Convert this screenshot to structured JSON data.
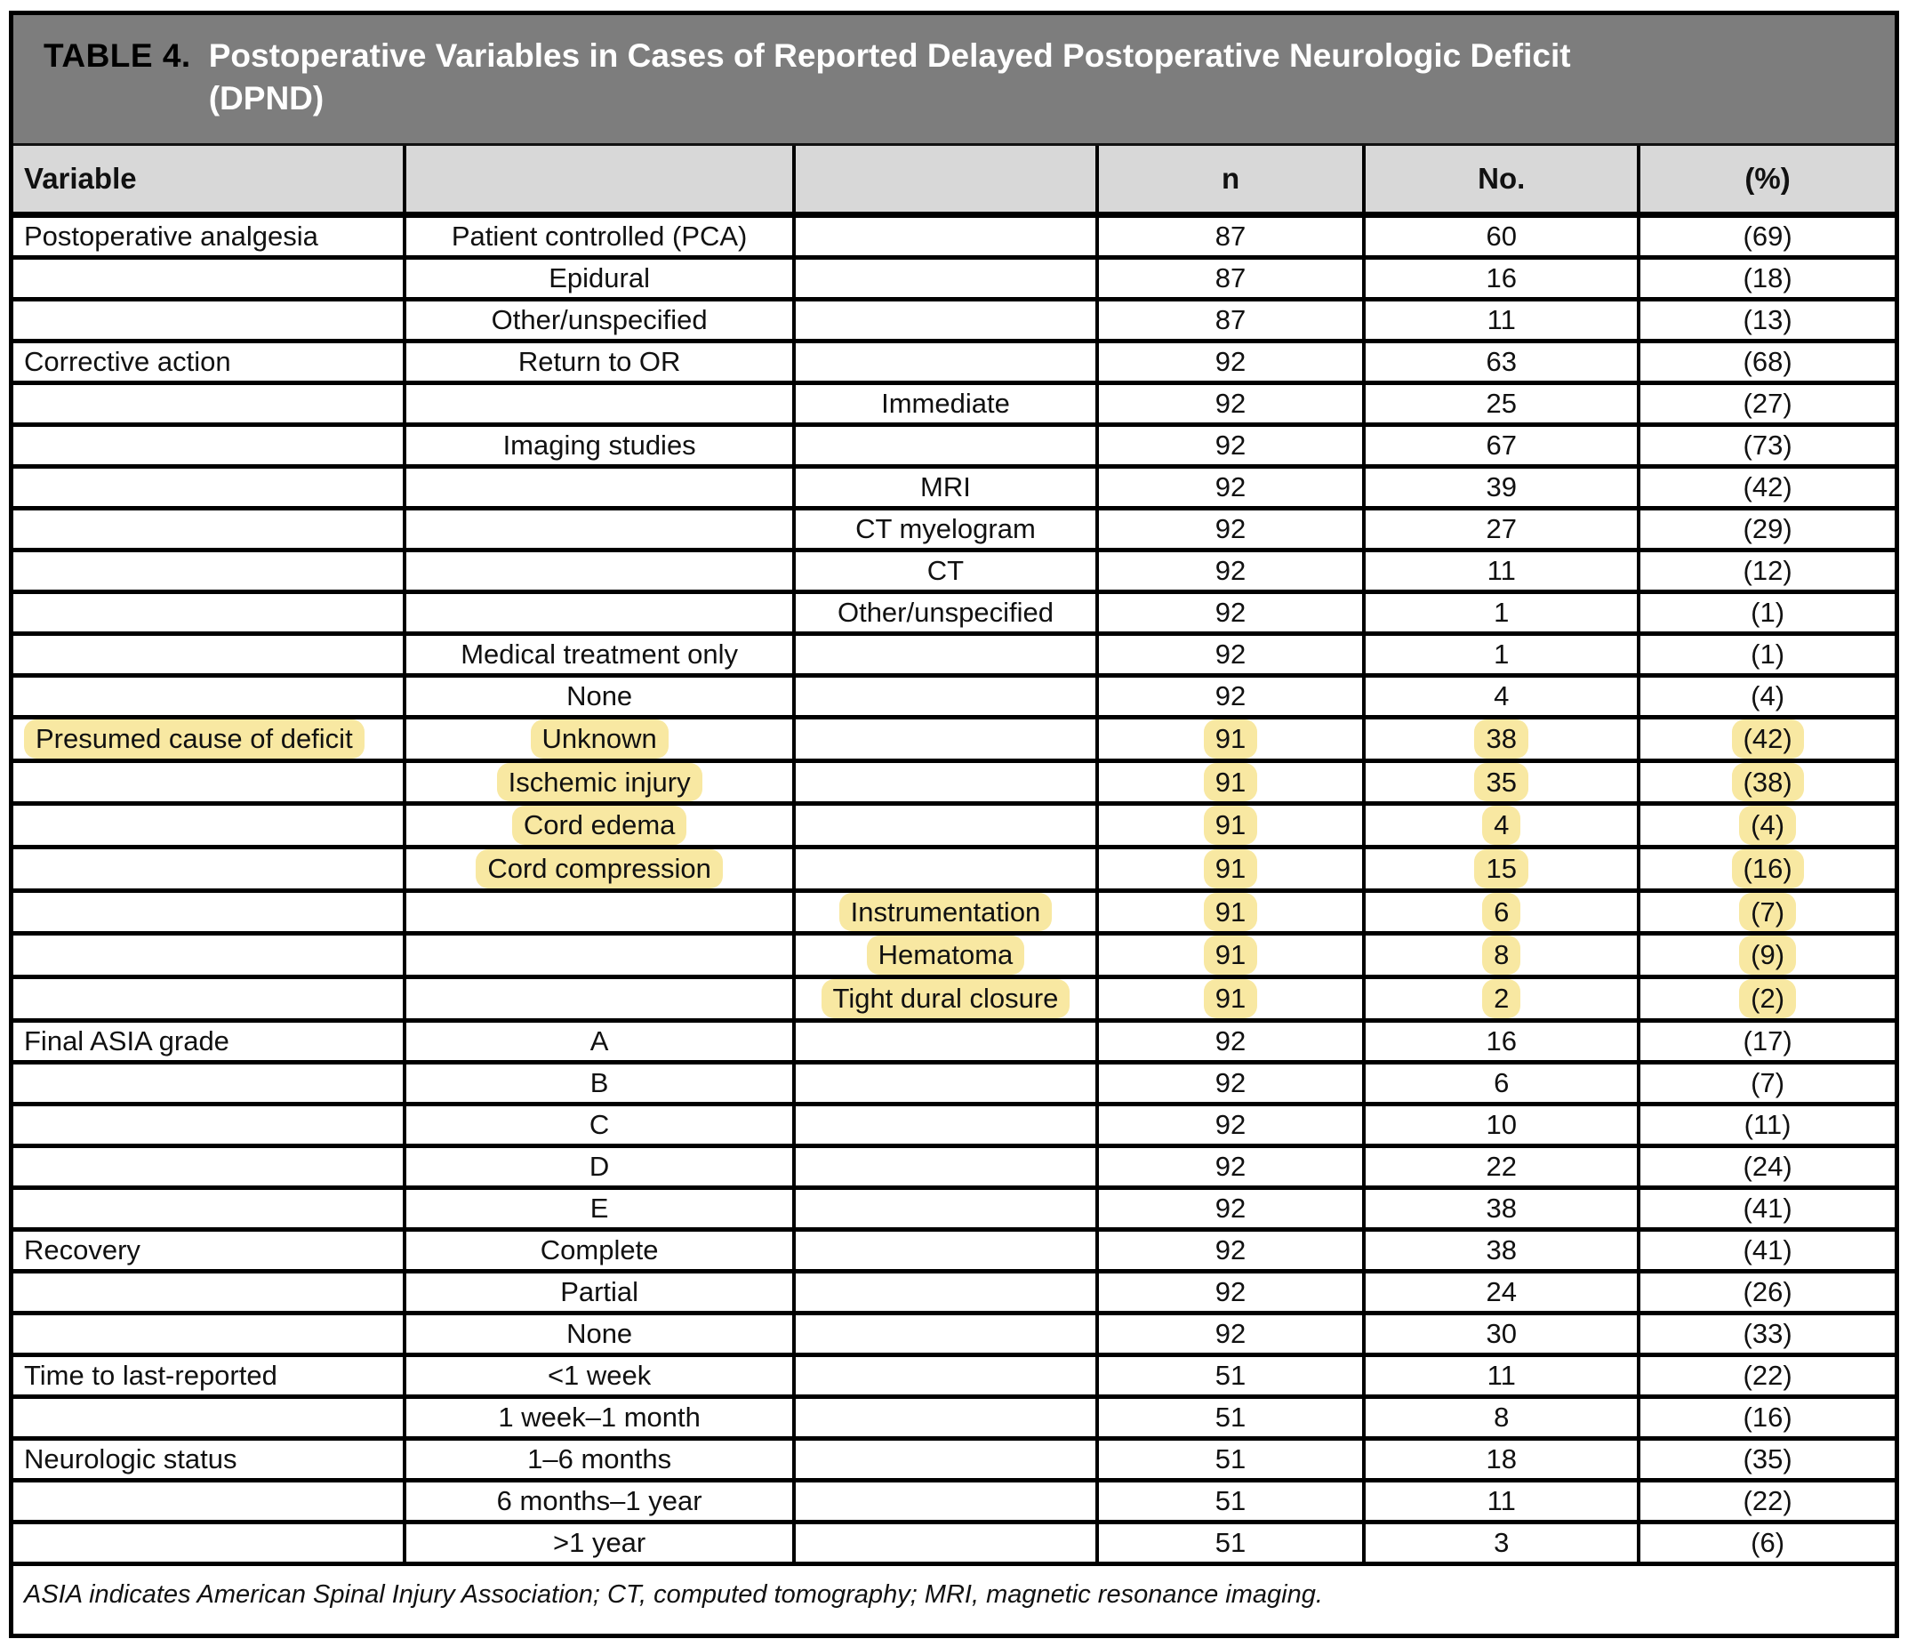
{
  "table": {
    "title": {
      "label": "TABLE 4.",
      "line1": "Postoperative Variables in Cases of Reported Delayed Postoperative Neurologic Deficit",
      "line2": "(DPND)"
    },
    "columns": {
      "variable": "Variable",
      "blank1": "",
      "blank2": "",
      "n": "n",
      "no": "No.",
      "pct": "(%)"
    },
    "rows": [
      {
        "c1": "Postoperative analgesia",
        "c2": "Patient controlled (PCA)",
        "c3": "",
        "n": "87",
        "no": "60",
        "pct": "(69)",
        "highlight": false
      },
      {
        "c1": "",
        "c2": "Epidural",
        "c3": "",
        "n": "87",
        "no": "16",
        "pct": "(18)",
        "highlight": false
      },
      {
        "c1": "",
        "c2": "Other/unspecified",
        "c3": "",
        "n": "87",
        "no": "11",
        "pct": "(13)",
        "highlight": false
      },
      {
        "c1": "Corrective action",
        "c2": "Return to OR",
        "c3": "",
        "n": "92",
        "no": "63",
        "pct": "(68)",
        "highlight": false
      },
      {
        "c1": "",
        "c2": "",
        "c3": "Immediate",
        "n": "92",
        "no": "25",
        "pct": "(27)",
        "highlight": false
      },
      {
        "c1": "",
        "c2": "Imaging studies",
        "c3": "",
        "n": "92",
        "no": "67",
        "pct": "(73)",
        "highlight": false
      },
      {
        "c1": "",
        "c2": "",
        "c3": "MRI",
        "n": "92",
        "no": "39",
        "pct": "(42)",
        "highlight": false
      },
      {
        "c1": "",
        "c2": "",
        "c3": "CT myelogram",
        "n": "92",
        "no": "27",
        "pct": "(29)",
        "highlight": false
      },
      {
        "c1": "",
        "c2": "",
        "c3": "CT",
        "n": "92",
        "no": "11",
        "pct": "(12)",
        "highlight": false
      },
      {
        "c1": "",
        "c2": "",
        "c3": "Other/unspecified",
        "n": "92",
        "no": "1",
        "pct": "(1)",
        "highlight": false
      },
      {
        "c1": "",
        "c2": "Medical treatment only",
        "c3": "",
        "n": "92",
        "no": "1",
        "pct": "(1)",
        "highlight": false
      },
      {
        "c1": "",
        "c2": "None",
        "c3": "",
        "n": "92",
        "no": "4",
        "pct": "(4)",
        "highlight": false
      },
      {
        "c1": "Presumed cause of deficit",
        "c2": "Unknown",
        "c3": "",
        "n": "91",
        "no": "38",
        "pct": "(42)",
        "highlight": true
      },
      {
        "c1": "",
        "c2": "Ischemic injury",
        "c3": "",
        "n": "91",
        "no": "35",
        "pct": "(38)",
        "highlight": true
      },
      {
        "c1": "",
        "c2": "Cord edema",
        "c3": "",
        "n": "91",
        "no": "4",
        "pct": "(4)",
        "highlight": true
      },
      {
        "c1": "",
        "c2": "Cord compression",
        "c3": "",
        "n": "91",
        "no": "15",
        "pct": "(16)",
        "highlight": true
      },
      {
        "c1": "",
        "c2": "",
        "c3": "Instrumentation",
        "n": "91",
        "no": "6",
        "pct": "(7)",
        "highlight": true
      },
      {
        "c1": "",
        "c2": "",
        "c3": "Hematoma",
        "n": "91",
        "no": "8",
        "pct": "(9)",
        "highlight": true
      },
      {
        "c1": "",
        "c2": "",
        "c3": "Tight dural closure",
        "n": "91",
        "no": "2",
        "pct": "(2)",
        "highlight": true
      },
      {
        "c1": "Final ASIA grade",
        "c2": "A",
        "c3": "",
        "n": "92",
        "no": "16",
        "pct": "(17)",
        "highlight": false
      },
      {
        "c1": "",
        "c2": "B",
        "c3": "",
        "n": "92",
        "no": "6",
        "pct": "(7)",
        "highlight": false
      },
      {
        "c1": "",
        "c2": "C",
        "c3": "",
        "n": "92",
        "no": "10",
        "pct": "(11)",
        "highlight": false
      },
      {
        "c1": "",
        "c2": "D",
        "c3": "",
        "n": "92",
        "no": "22",
        "pct": "(24)",
        "highlight": false
      },
      {
        "c1": "",
        "c2": "E",
        "c3": "",
        "n": "92",
        "no": "38",
        "pct": "(41)",
        "highlight": false
      },
      {
        "c1": "Recovery",
        "c2": "Complete",
        "c3": "",
        "n": "92",
        "no": "38",
        "pct": "(41)",
        "highlight": false
      },
      {
        "c1": "",
        "c2": "Partial",
        "c3": "",
        "n": "92",
        "no": "24",
        "pct": "(26)",
        "highlight": false
      },
      {
        "c1": "",
        "c2": "None",
        "c3": "",
        "n": "92",
        "no": "30",
        "pct": "(33)",
        "highlight": false
      },
      {
        "c1": "Time to last-reported",
        "c2": "<1 week",
        "c3": "",
        "n": "51",
        "no": "11",
        "pct": "(22)",
        "highlight": false
      },
      {
        "c1": "",
        "c2": "1 week–1 month",
        "c3": "",
        "n": "51",
        "no": "8",
        "pct": "(16)",
        "highlight": false
      },
      {
        "c1": "Neurologic status",
        "c2": "1–6 months",
        "c3": "",
        "n": "51",
        "no": "18",
        "pct": "(35)",
        "highlight": false
      },
      {
        "c1": "",
        "c2": "6 months–1 year",
        "c3": "",
        "n": "51",
        "no": "11",
        "pct": "(22)",
        "highlight": false
      },
      {
        "c1": "",
        "c2": ">1 year",
        "c3": "",
        "n": "51",
        "no": "3",
        "pct": "(6)",
        "highlight": false
      }
    ],
    "footnote": "ASIA indicates American Spinal Injury Association; CT, computed tomography; MRI, magnetic resonance imaging.",
    "colors": {
      "title_band": "#7d7d7d",
      "header_band": "#d8d8d8",
      "highlight": "#f8e8a2",
      "border": "#000000"
    }
  }
}
